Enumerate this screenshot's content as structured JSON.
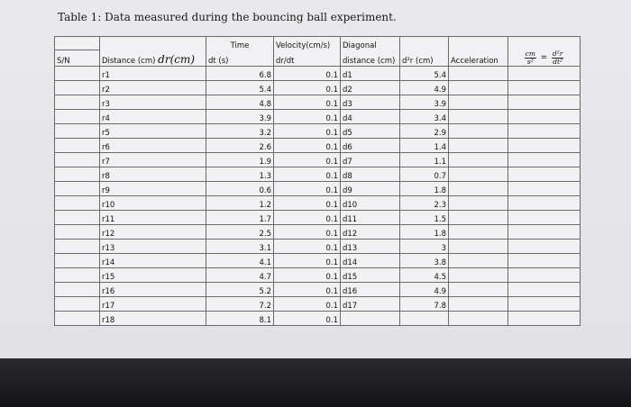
{
  "caption": "Table 1: Data measured during the bouncing ball experiment.",
  "headers": {
    "sn": "S/N",
    "distance": "Distance (cm)",
    "distance_symbol": "dr(cm)",
    "time_top": "Time",
    "time": "dt (s)",
    "velocity_top": "Velocity(cm/s)",
    "velocity": "dr/dt",
    "diagonal_top": "Diagonal",
    "diagonal": "distance (cm)",
    "second_diff": "d²r (cm)",
    "acceleration": "Acceleration",
    "accel_unit_num": "cm",
    "accel_unit_den": "s²",
    "accel_equals": "=",
    "accel_deriv_num": "d²r",
    "accel_deriv_den": "dt²"
  },
  "rows": [
    {
      "r": "r1",
      "dr": "6.8",
      "dt": "0.1",
      "d": "d1",
      "d2r": "5.4"
    },
    {
      "r": "r2",
      "dr": "5.4",
      "dt": "0.1",
      "d": "d2",
      "d2r": "4.9"
    },
    {
      "r": "r3",
      "dr": "4.8",
      "dt": "0.1",
      "d": "d3",
      "d2r": "3.9"
    },
    {
      "r": "r4",
      "dr": "3.9",
      "dt": "0.1",
      "d": "d4",
      "d2r": "3.4"
    },
    {
      "r": "r5",
      "dr": "3.2",
      "dt": "0.1",
      "d": "d5",
      "d2r": "2.9"
    },
    {
      "r": "r6",
      "dr": "2.6",
      "dt": "0.1",
      "d": "d6",
      "d2r": "1.4"
    },
    {
      "r": "r7",
      "dr": "1.9",
      "dt": "0.1",
      "d": "d7",
      "d2r": "1.1"
    },
    {
      "r": "r8",
      "dr": "1.3",
      "dt": "0.1",
      "d": "d8",
      "d2r": "0.7"
    },
    {
      "r": "r9",
      "dr": "0.6",
      "dt": "0.1",
      "d": "d9",
      "d2r": "1.8"
    },
    {
      "r": "r10",
      "dr": "1.2",
      "dt": "0.1",
      "d": "d10",
      "d2r": "2.3"
    },
    {
      "r": "r11",
      "dr": "1.7",
      "dt": "0.1",
      "d": "d11",
      "d2r": "1.5"
    },
    {
      "r": "r12",
      "dr": "2.5",
      "dt": "0.1",
      "d": "d12",
      "d2r": "1.8"
    },
    {
      "r": "r13",
      "dr": "3.1",
      "dt": "0.1",
      "d": "d13",
      "d2r": "3"
    },
    {
      "r": "r14",
      "dr": "4.1",
      "dt": "0.1",
      "d": "d14",
      "d2r": "3.8"
    },
    {
      "r": "r15",
      "dr": "4.7",
      "dt": "0.1",
      "d": "d15",
      "d2r": "4.5"
    },
    {
      "r": "r16",
      "dr": "5.2",
      "dt": "0.1",
      "d": "d16",
      "d2r": "4.9"
    },
    {
      "r": "r17",
      "dr": "7.2",
      "dt": "0.1",
      "d": "d17",
      "d2r": "7.8"
    },
    {
      "r": "r18",
      "dr": "8.1",
      "dt": "0.1",
      "d": "",
      "d2r": ""
    }
  ]
}
